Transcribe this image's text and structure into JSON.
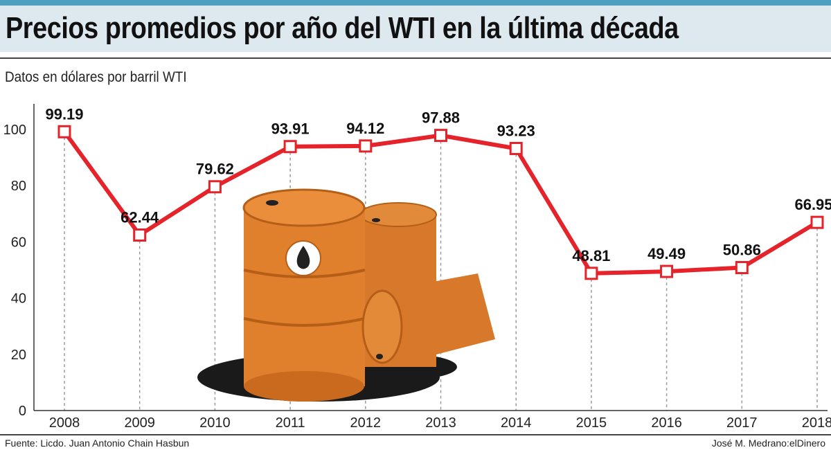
{
  "header": {
    "title": "Precios promedios por año del WTI en la última década",
    "subtitle": "Datos en dólares por barril WTI"
  },
  "footer": {
    "source": "Fuente: Licdo. Juan Antonio Chain Hasbun",
    "credit": "José M. Medrano:elDinero"
  },
  "chart_data": {
    "type": "line",
    "categories": [
      "2008",
      "2009",
      "2010",
      "2011",
      "2012",
      "2013",
      "2014",
      "2015",
      "2016",
      "2017",
      "2018"
    ],
    "values": [
      99.19,
      62.44,
      79.62,
      93.91,
      94.12,
      97.88,
      93.23,
      48.81,
      49.49,
      50.86,
      66.95
    ],
    "data_labels": [
      "99.19",
      "62.44",
      "79.62",
      "93.91",
      "94.12",
      "97.88",
      "93.23",
      "48.81",
      "49.49",
      "50.86",
      "66.95"
    ],
    "yticks": [
      "0",
      "20",
      "40",
      "60",
      "80",
      "100"
    ],
    "ylim": [
      0,
      100
    ],
    "grid": "vertical dotted",
    "line_color": "#e5232a",
    "illustration": "oil-barrels"
  }
}
